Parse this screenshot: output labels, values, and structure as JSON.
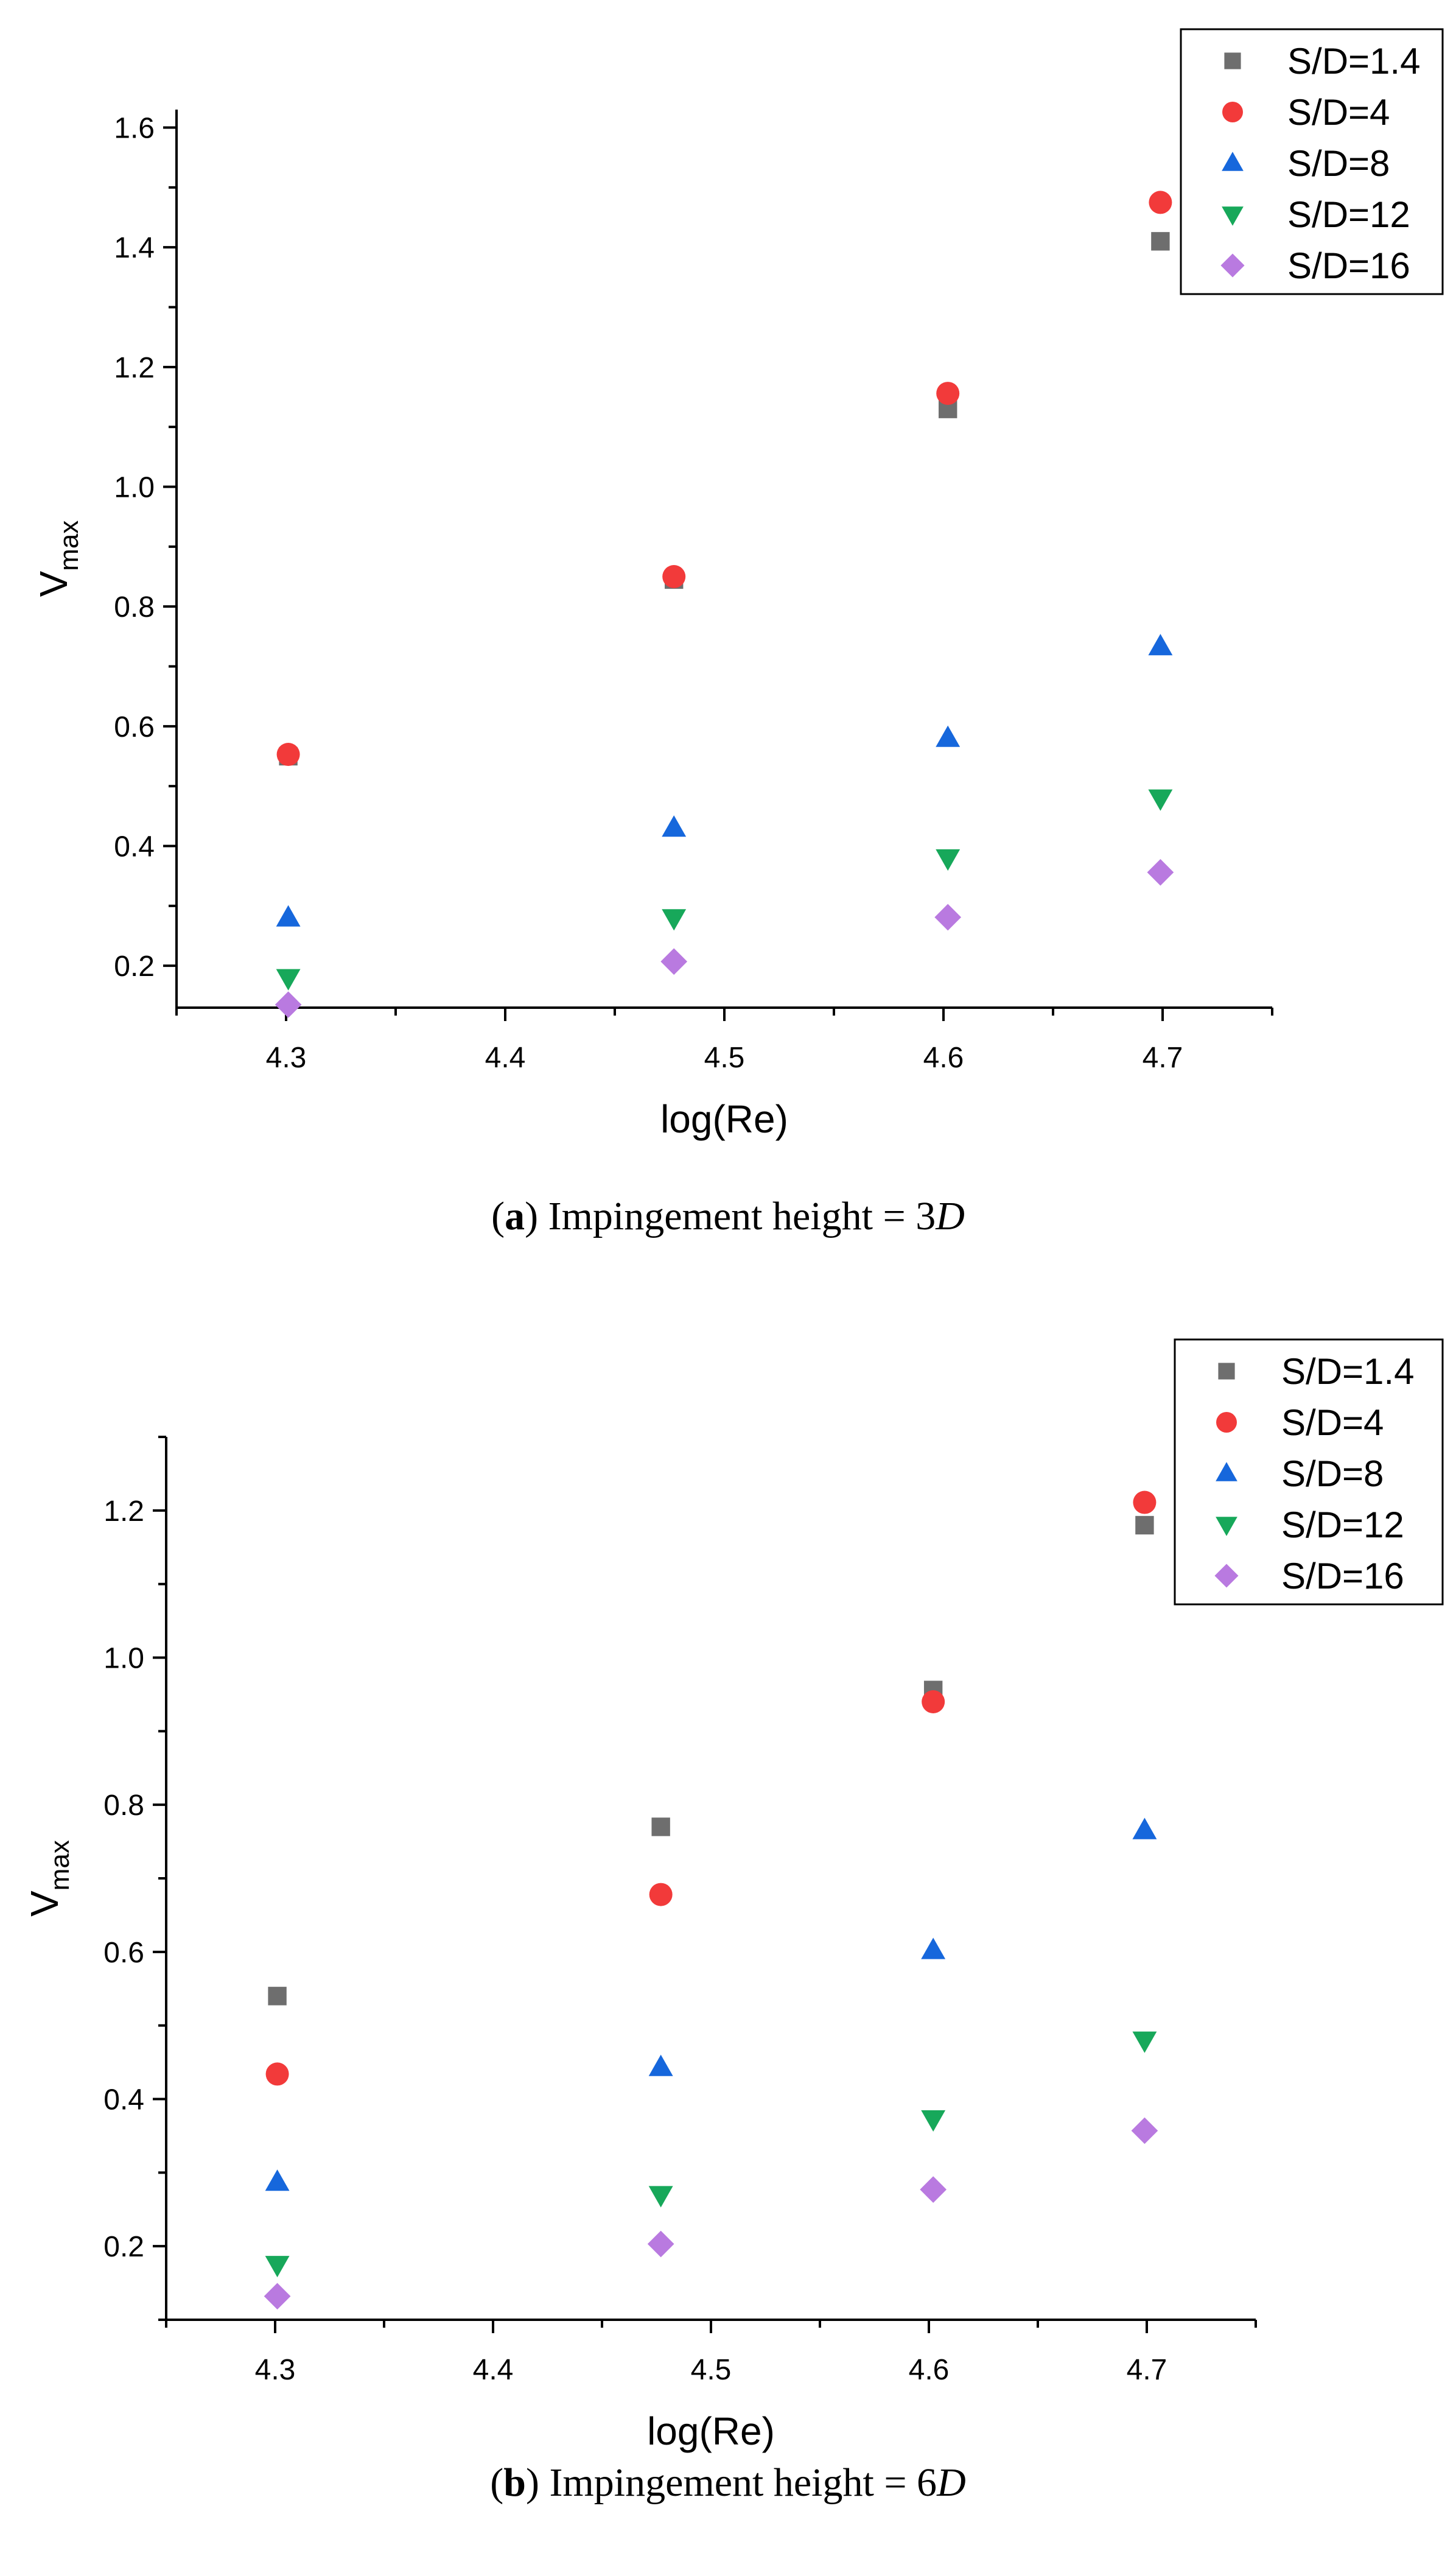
{
  "chart_data": [
    {
      "type": "scatter",
      "panel": "a",
      "caption": {
        "open": "(",
        "tag": "a",
        "close": ")",
        "text": " Impingement height = 3",
        "var": "D"
      },
      "xlabel": "log(Re)",
      "ylabel": {
        "main": "V",
        "sub": "max"
      },
      "xlim": [
        4.25,
        4.75
      ],
      "ylim": [
        0.13,
        1.63
      ],
      "xticks": [
        4.3,
        4.4,
        4.5,
        4.6,
        4.7
      ],
      "xtick_labels": [
        "4.3",
        "4.4",
        "4.5",
        "4.6",
        "4.7"
      ],
      "yticks": [
        0.2,
        0.4,
        0.6,
        0.8,
        1.0,
        1.2,
        1.4,
        1.6
      ],
      "ytick_labels": [
        "0.2",
        "0.4",
        "0.6",
        "0.8",
        "1.0",
        "1.2",
        "1.4",
        "1.6"
      ],
      "x": [
        4.301,
        4.477,
        4.602,
        4.699
      ],
      "legend_position": "top-right",
      "series": [
        {
          "name": "S/D=1.4",
          "marker": "square",
          "color": "#6e6e6e",
          "values": [
            0.55,
            0.845,
            1.13,
            1.41
          ]
        },
        {
          "name": "S/D=4",
          "marker": "circle",
          "color": "#f23a3a",
          "values": [
            0.553,
            0.85,
            1.156,
            1.475
          ]
        },
        {
          "name": "S/D=8",
          "marker": "triangle-up",
          "color": "#1667dc",
          "values": [
            0.28,
            0.43,
            0.58,
            0.733
          ]
        },
        {
          "name": "S/D=12",
          "marker": "triangle-down",
          "color": "#17a85a",
          "values": [
            0.18,
            0.28,
            0.38,
            0.48
          ]
        },
        {
          "name": "S/D=16",
          "marker": "diamond",
          "color": "#b97ae0",
          "values": [
            0.135,
            0.207,
            0.281,
            0.356
          ]
        }
      ]
    },
    {
      "type": "scatter",
      "panel": "b",
      "caption": {
        "open": "(",
        "tag": "b",
        "close": ")",
        "text": " Impingement height = 6",
        "var": "D"
      },
      "xlabel": "log(Re)",
      "ylabel": {
        "main": "V",
        "sub": "max"
      },
      "xlim": [
        4.25,
        4.75
      ],
      "ylim": [
        0.1,
        1.3
      ],
      "xticks": [
        4.3,
        4.4,
        4.5,
        4.6,
        4.7
      ],
      "xtick_labels": [
        "4.3",
        "4.4",
        "4.5",
        "4.6",
        "4.7"
      ],
      "yticks": [
        0.2,
        0.4,
        0.6,
        0.8,
        1.0,
        1.2
      ],
      "ytick_labels": [
        "0.2",
        "0.4",
        "0.6",
        "0.8",
        "1.0",
        "1.2"
      ],
      "x": [
        4.301,
        4.477,
        4.602,
        4.699
      ],
      "legend_position": "top-right",
      "series": [
        {
          "name": "S/D=1.4",
          "marker": "square",
          "color": "#6e6e6e",
          "values": [
            0.54,
            0.77,
            0.956,
            1.18
          ]
        },
        {
          "name": "S/D=4",
          "marker": "circle",
          "color": "#f23a3a",
          "values": [
            0.434,
            0.678,
            0.94,
            1.211
          ]
        },
        {
          "name": "S/D=8",
          "marker": "triangle-up",
          "color": "#1667dc",
          "values": [
            0.287,
            0.443,
            0.602,
            0.765
          ]
        },
        {
          "name": "S/D=12",
          "marker": "triangle-down",
          "color": "#17a85a",
          "values": [
            0.175,
            0.27,
            0.373,
            0.48
          ]
        },
        {
          "name": "S/D=16",
          "marker": "diamond",
          "color": "#b97ae0",
          "values": [
            0.132,
            0.203,
            0.277,
            0.357
          ]
        }
      ]
    }
  ]
}
